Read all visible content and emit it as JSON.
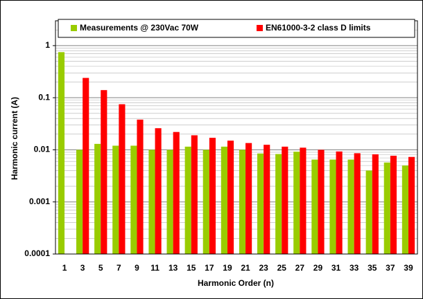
{
  "chart_data": {
    "type": "bar",
    "xlabel": "Harmonic Order (n)",
    "ylabel": "Harmonic current (A)",
    "categories": [
      "1",
      "3",
      "5",
      "7",
      "9",
      "11",
      "13",
      "15",
      "17",
      "19",
      "21",
      "23",
      "25",
      "27",
      "29",
      "31",
      "33",
      "35",
      "37",
      "39"
    ],
    "series": [
      {
        "name": "Measurements @ 230Vac 70W",
        "color": "#99cc00",
        "values": [
          0.75,
          0.01,
          0.013,
          0.012,
          0.012,
          0.01,
          0.01,
          0.0115,
          0.01,
          0.0115,
          0.01,
          0.0085,
          0.0083,
          0.0092,
          0.0065,
          0.0065,
          0.0065,
          0.004,
          0.0057,
          0.005
        ]
      },
      {
        "name": "EN61000-3-2 class D limits",
        "color": "#ff0000",
        "values": [
          null,
          0.24,
          0.14,
          0.075,
          0.038,
          0.026,
          0.022,
          0.019,
          0.017,
          0.015,
          0.0135,
          0.0125,
          0.0115,
          0.011,
          0.01,
          0.0093,
          0.0086,
          0.0082,
          0.0077,
          0.0073
        ]
      }
    ],
    "ylim": [
      0.0001,
      3
    ],
    "yticks": [
      0.0001,
      0.001,
      0.01,
      0.1,
      1
    ],
    "log_y": true,
    "grid": true,
    "minor_grid": true,
    "legend": "top"
  }
}
